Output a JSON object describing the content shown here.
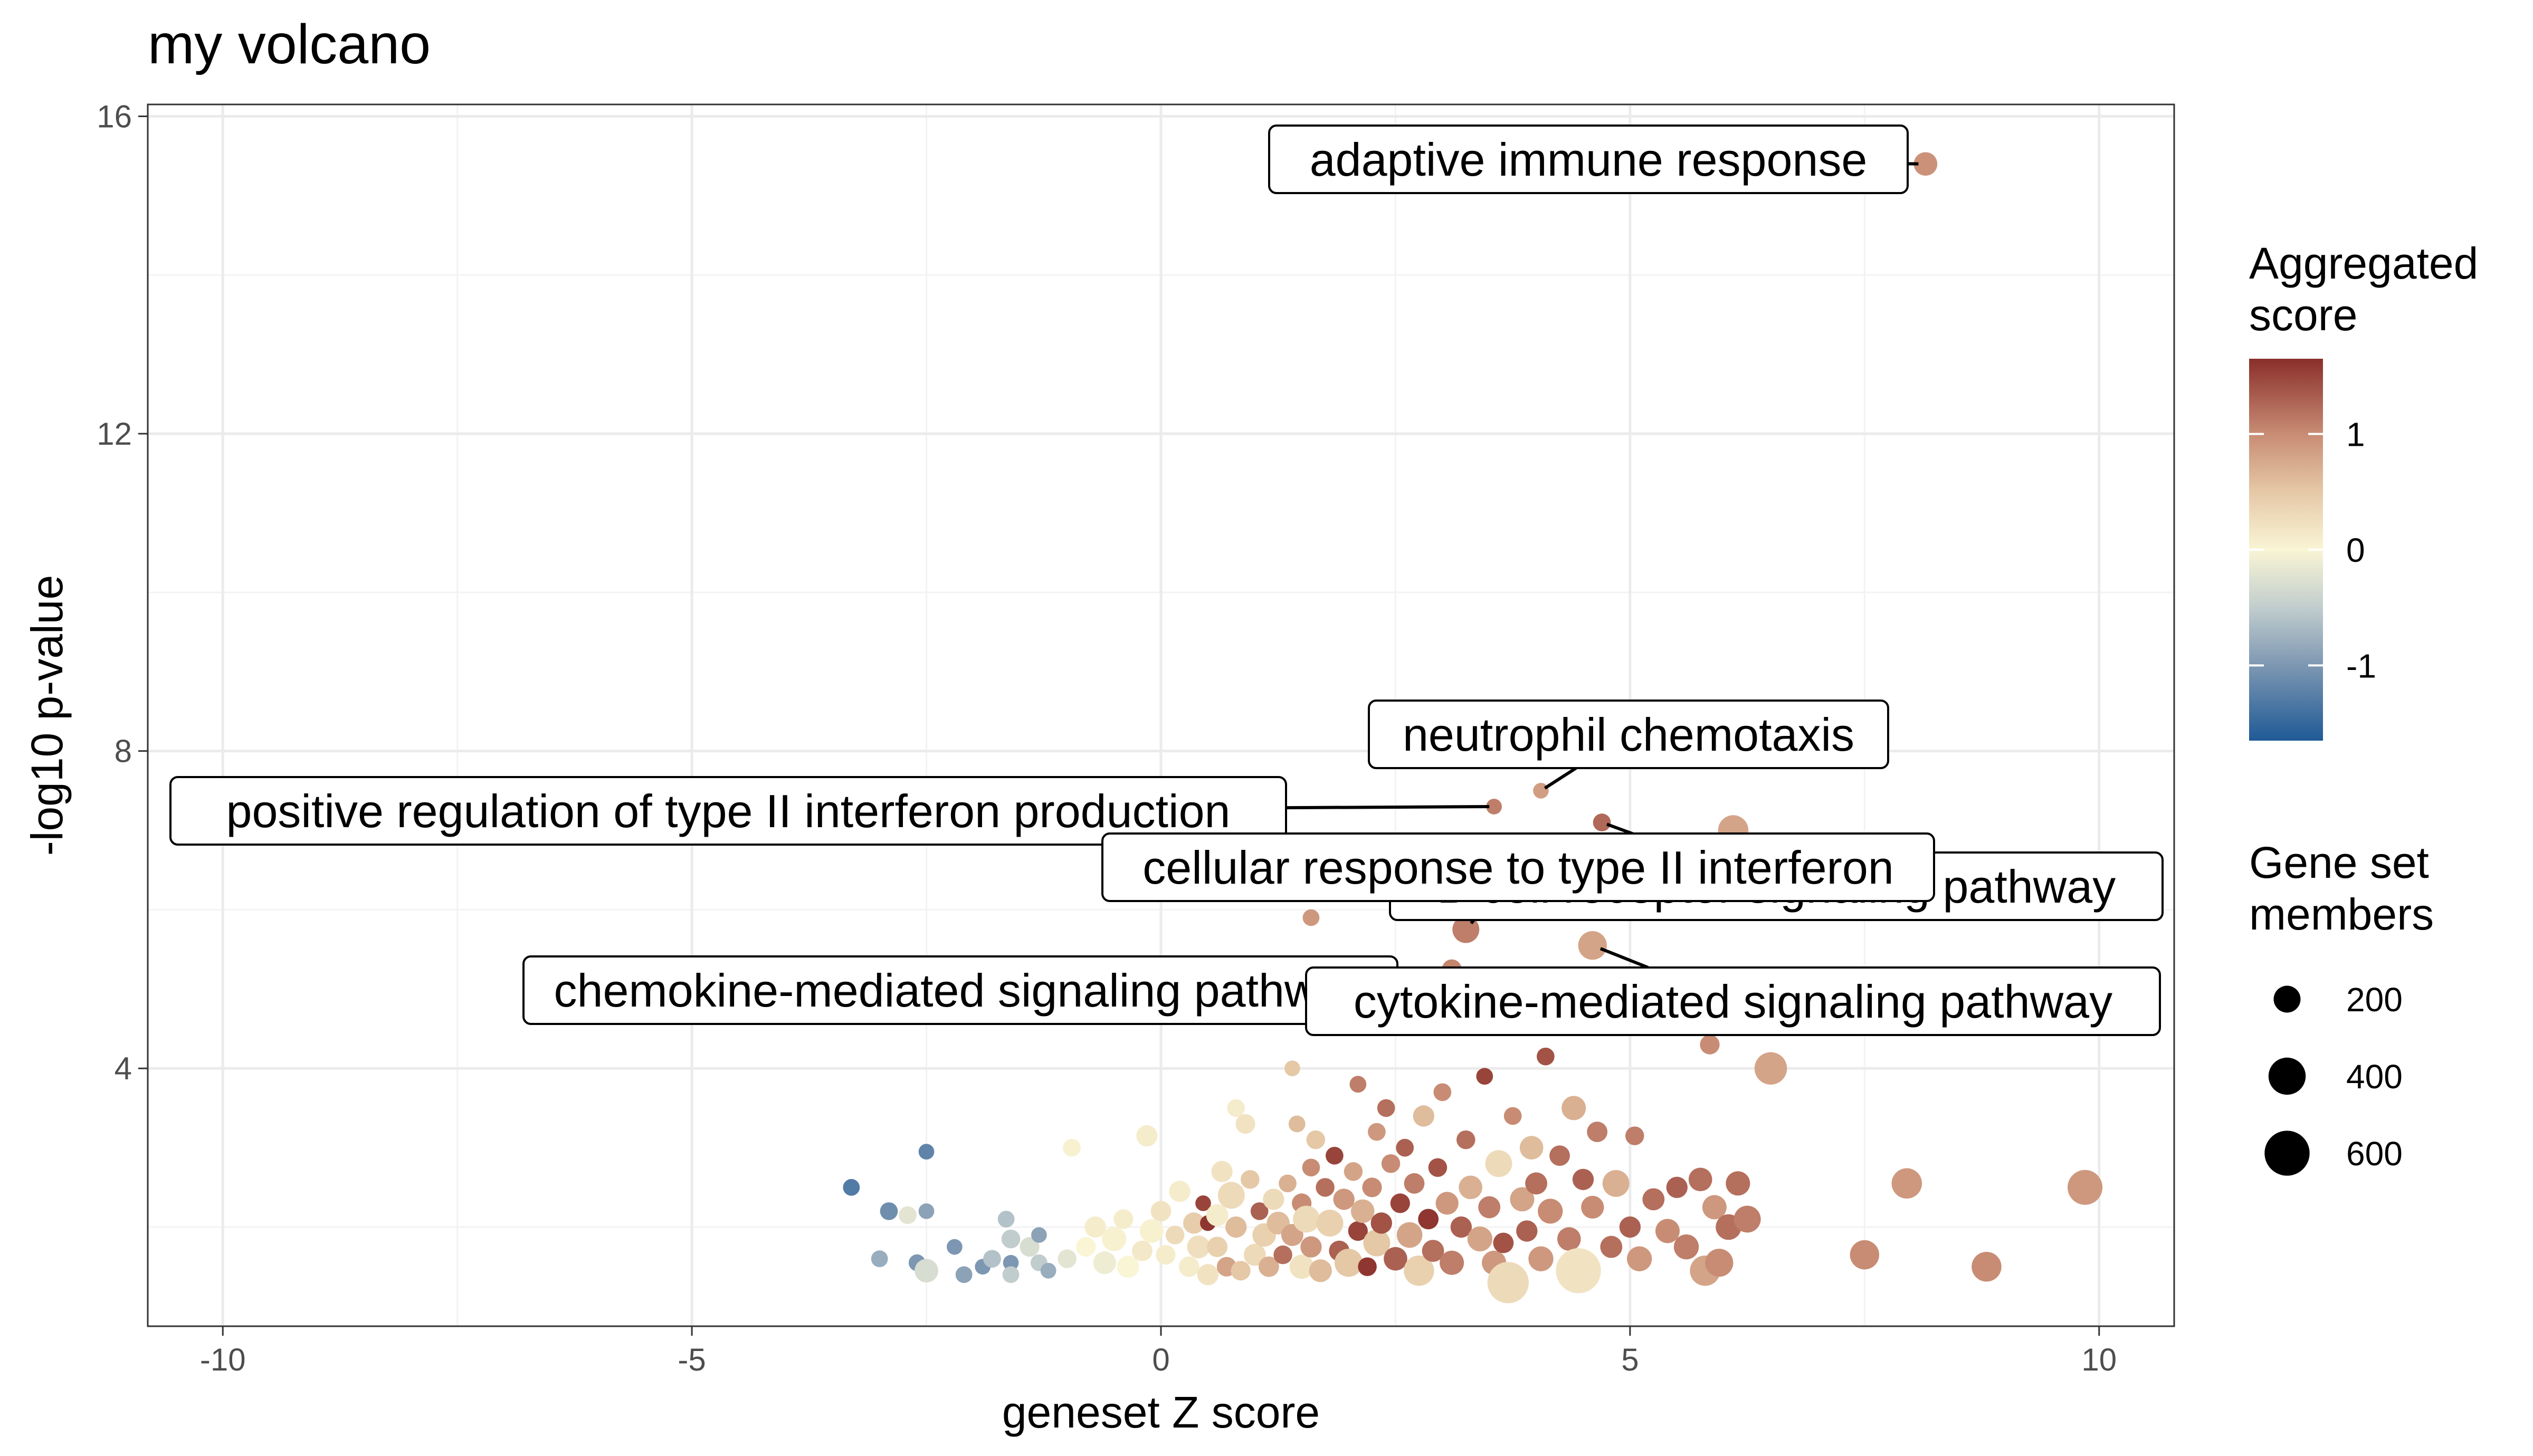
{
  "chart_data": {
    "type": "scatter",
    "title": "my volcano",
    "xlabel": "geneset Z score",
    "ylabel": "-log10 p-value",
    "xlim": [
      -10.8,
      10.8
    ],
    "ylim": [
      0.75,
      16.15
    ],
    "x_ticks": [
      -10,
      -5,
      0,
      5,
      10
    ],
    "y_ticks": [
      4,
      8,
      12,
      16
    ],
    "grid": true,
    "legend_position": "right",
    "color_scale": {
      "title_lines": [
        "Aggregated",
        "score"
      ],
      "domain": [
        -1.65,
        1.65
      ],
      "ticks": [
        1,
        0,
        -1
      ],
      "stops": [
        {
          "value": -1.65,
          "color": "#1f5a96"
        },
        {
          "value": -1.0,
          "color": "#7d97b2"
        },
        {
          "value": -0.5,
          "color": "#c1cdcd"
        },
        {
          "value": 0.0,
          "color": "#f9f5d5"
        },
        {
          "value": 0.5,
          "color": "#e5c8a6"
        },
        {
          "value": 1.0,
          "color": "#c88c74"
        },
        {
          "value": 1.65,
          "color": "#8a2f2a"
        }
      ]
    },
    "size_scale": {
      "title_lines": [
        "Gene set",
        "members"
      ],
      "ticks": [
        200,
        400,
        600
      ],
      "range": [
        50,
        700
      ]
    },
    "labeled_points": [
      {
        "label": "adaptive immune response",
        "x": 8.15,
        "y": 15.4,
        "color_value": 0.95,
        "size_value": 150
      },
      {
        "label": "neutrophil chemotaxis",
        "x": 4.05,
        "y": 7.5,
        "color_value": 0.85,
        "size_value": 60
      },
      {
        "label": "positive regulation of type II interferon production",
        "x": 3.55,
        "y": 7.3,
        "color_value": 1.1,
        "size_value": 60
      },
      {
        "label": "B cell receptor signaling pathway",
        "x": 4.7,
        "y": 7.1,
        "color_value": 1.25,
        "size_value": 80
      },
      {
        "label": "cellular response to type II interferon",
        "x": 3.25,
        "y": 5.75,
        "color_value": 1.1,
        "size_value": 200
      },
      {
        "label": "chemokine-mediated signaling pathway",
        "x": 3.1,
        "y": 5.25,
        "color_value": 1.05,
        "size_value": 100
      },
      {
        "label": "cytokine-mediated signaling pathway",
        "x": 4.6,
        "y": 5.55,
        "color_value": 0.8,
        "size_value": 230
      }
    ],
    "points": [
      {
        "x": -3.3,
        "y": 2.5,
        "color_value": -1.3,
        "size_value": 70
      },
      {
        "x": -2.9,
        "y": 2.2,
        "color_value": -1.1,
        "size_value": 80
      },
      {
        "x": -2.5,
        "y": 2.95,
        "color_value": -1.2,
        "size_value": 60
      },
      {
        "x": -2.5,
        "y": 2.2,
        "color_value": -0.9,
        "size_value": 60
      },
      {
        "x": -2.7,
        "y": 2.15,
        "color_value": -0.2,
        "size_value": 80
      },
      {
        "x": -3.0,
        "y": 1.6,
        "color_value": -0.8,
        "size_value": 70
      },
      {
        "x": -2.6,
        "y": 1.55,
        "color_value": -1.0,
        "size_value": 70
      },
      {
        "x": -2.5,
        "y": 1.45,
        "color_value": -0.3,
        "size_value": 150
      },
      {
        "x": -2.2,
        "y": 1.75,
        "color_value": -1.0,
        "size_value": 60
      },
      {
        "x": -2.1,
        "y": 1.4,
        "color_value": -0.9,
        "size_value": 70
      },
      {
        "x": -1.9,
        "y": 1.5,
        "color_value": -1.0,
        "size_value": 60
      },
      {
        "x": -1.8,
        "y": 1.6,
        "color_value": -0.6,
        "size_value": 80
      },
      {
        "x": -1.65,
        "y": 2.1,
        "color_value": -0.6,
        "size_value": 70
      },
      {
        "x": -1.6,
        "y": 1.85,
        "color_value": -0.5,
        "size_value": 90
      },
      {
        "x": -1.6,
        "y": 1.55,
        "color_value": -1.0,
        "size_value": 60
      },
      {
        "x": -1.6,
        "y": 1.4,
        "color_value": -0.5,
        "size_value": 70
      },
      {
        "x": -1.4,
        "y": 1.75,
        "color_value": -0.3,
        "size_value": 100
      },
      {
        "x": -1.3,
        "y": 1.9,
        "color_value": -0.9,
        "size_value": 60
      },
      {
        "x": -1.3,
        "y": 1.55,
        "color_value": -0.5,
        "size_value": 70
      },
      {
        "x": -1.2,
        "y": 1.45,
        "color_value": -0.8,
        "size_value": 60
      },
      {
        "x": -1.0,
        "y": 1.6,
        "color_value": -0.2,
        "size_value": 90
      },
      {
        "x": -0.95,
        "y": 3.0,
        "color_value": 0.05,
        "size_value": 80
      },
      {
        "x": -0.8,
        "y": 1.75,
        "color_value": 0.0,
        "size_value": 100
      },
      {
        "x": -0.7,
        "y": 2.0,
        "color_value": 0.1,
        "size_value": 120
      },
      {
        "x": -0.6,
        "y": 1.55,
        "color_value": -0.1,
        "size_value": 140
      },
      {
        "x": -0.5,
        "y": 1.85,
        "color_value": 0.05,
        "size_value": 160
      },
      {
        "x": -0.4,
        "y": 2.1,
        "color_value": 0.1,
        "size_value": 100
      },
      {
        "x": -0.35,
        "y": 1.5,
        "color_value": 0.0,
        "size_value": 130
      },
      {
        "x": -0.2,
        "y": 1.7,
        "color_value": 0.15,
        "size_value": 110
      },
      {
        "x": -0.15,
        "y": 3.15,
        "color_value": 0.1,
        "size_value": 120
      },
      {
        "x": -0.1,
        "y": 1.95,
        "color_value": 0.05,
        "size_value": 150
      },
      {
        "x": 0.0,
        "y": 2.2,
        "color_value": 0.2,
        "size_value": 110
      },
      {
        "x": 0.05,
        "y": 1.65,
        "color_value": 0.1,
        "size_value": 100
      },
      {
        "x": 0.15,
        "y": 1.9,
        "color_value": 0.3,
        "size_value": 90
      },
      {
        "x": 0.2,
        "y": 2.45,
        "color_value": 0.1,
        "size_value": 120
      },
      {
        "x": 0.3,
        "y": 1.5,
        "color_value": 0.1,
        "size_value": 110
      },
      {
        "x": 0.35,
        "y": 2.05,
        "color_value": 0.45,
        "size_value": 120
      },
      {
        "x": 0.4,
        "y": 1.75,
        "color_value": 0.25,
        "size_value": 140
      },
      {
        "x": 0.45,
        "y": 2.3,
        "color_value": 1.5,
        "size_value": 60
      },
      {
        "x": 0.5,
        "y": 2.05,
        "color_value": 1.6,
        "size_value": 60
      },
      {
        "x": 0.5,
        "y": 1.4,
        "color_value": 0.2,
        "size_value": 120
      },
      {
        "x": 0.6,
        "y": 2.15,
        "color_value": 0.1,
        "size_value": 130
      },
      {
        "x": 0.6,
        "y": 1.75,
        "color_value": 0.4,
        "size_value": 110
      },
      {
        "x": 0.65,
        "y": 2.7,
        "color_value": 0.2,
        "size_value": 120
      },
      {
        "x": 0.7,
        "y": 1.5,
        "color_value": 0.8,
        "size_value": 100
      },
      {
        "x": 0.75,
        "y": 2.4,
        "color_value": 0.3,
        "size_value": 200
      },
      {
        "x": 0.8,
        "y": 3.5,
        "color_value": 0.1,
        "size_value": 80
      },
      {
        "x": 0.8,
        "y": 2.0,
        "color_value": 0.6,
        "size_value": 120
      },
      {
        "x": 0.85,
        "y": 1.45,
        "color_value": 0.5,
        "size_value": 100
      },
      {
        "x": 0.9,
        "y": 3.3,
        "color_value": 0.2,
        "size_value": 100
      },
      {
        "x": 0.95,
        "y": 2.6,
        "color_value": 0.5,
        "size_value": 90
      },
      {
        "x": 1.0,
        "y": 1.65,
        "color_value": 0.3,
        "size_value": 130
      },
      {
        "x": 1.05,
        "y": 2.2,
        "color_value": 1.3,
        "size_value": 80
      },
      {
        "x": 1.1,
        "y": 1.9,
        "color_value": 0.4,
        "size_value": 150
      },
      {
        "x": 1.15,
        "y": 1.5,
        "color_value": 0.7,
        "size_value": 110
      },
      {
        "x": 1.2,
        "y": 2.35,
        "color_value": 0.3,
        "size_value": 120
      },
      {
        "x": 1.25,
        "y": 2.05,
        "color_value": 0.6,
        "size_value": 140
      },
      {
        "x": 1.3,
        "y": 1.65,
        "color_value": 1.2,
        "size_value": 90
      },
      {
        "x": 1.35,
        "y": 2.55,
        "color_value": 0.7,
        "size_value": 80
      },
      {
        "x": 1.4,
        "y": 4.0,
        "color_value": 0.5,
        "size_value": 60
      },
      {
        "x": 1.4,
        "y": 1.9,
        "color_value": 0.8,
        "size_value": 130
      },
      {
        "x": 1.45,
        "y": 3.3,
        "color_value": 0.6,
        "size_value": 70
      },
      {
        "x": 1.5,
        "y": 2.3,
        "color_value": 1.0,
        "size_value": 100
      },
      {
        "x": 1.5,
        "y": 1.5,
        "color_value": 0.2,
        "size_value": 160
      },
      {
        "x": 1.55,
        "y": 2.1,
        "color_value": 0.3,
        "size_value": 200
      },
      {
        "x": 1.6,
        "y": 2.75,
        "color_value": 1.0,
        "size_value": 80
      },
      {
        "x": 1.6,
        "y": 1.75,
        "color_value": 0.9,
        "size_value": 120
      },
      {
        "x": 1.6,
        "y": 5.9,
        "color_value": 0.9,
        "size_value": 70
      },
      {
        "x": 1.65,
        "y": 3.1,
        "color_value": 0.5,
        "size_value": 90
      },
      {
        "x": 1.7,
        "y": 1.45,
        "color_value": 0.6,
        "size_value": 140
      },
      {
        "x": 1.75,
        "y": 2.5,
        "color_value": 1.2,
        "size_value": 90
      },
      {
        "x": 1.8,
        "y": 2.05,
        "color_value": 0.4,
        "size_value": 200
      },
      {
        "x": 1.85,
        "y": 2.9,
        "color_value": 1.5,
        "size_value": 80
      },
      {
        "x": 1.9,
        "y": 1.7,
        "color_value": 1.3,
        "size_value": 110
      },
      {
        "x": 1.95,
        "y": 2.35,
        "color_value": 0.9,
        "size_value": 120
      },
      {
        "x": 2.0,
        "y": 1.55,
        "color_value": 0.5,
        "size_value": 220
      },
      {
        "x": 2.05,
        "y": 2.7,
        "color_value": 0.8,
        "size_value": 90
      },
      {
        "x": 2.1,
        "y": 3.8,
        "color_value": 1.1,
        "size_value": 70
      },
      {
        "x": 2.1,
        "y": 1.95,
        "color_value": 1.5,
        "size_value": 100
      },
      {
        "x": 2.15,
        "y": 2.2,
        "color_value": 0.7,
        "size_value": 150
      },
      {
        "x": 2.2,
        "y": 1.5,
        "color_value": 1.6,
        "size_value": 90
      },
      {
        "x": 2.25,
        "y": 2.5,
        "color_value": 1.0,
        "size_value": 100
      },
      {
        "x": 2.3,
        "y": 3.2,
        "color_value": 0.9,
        "size_value": 80
      },
      {
        "x": 2.3,
        "y": 1.8,
        "color_value": 0.5,
        "size_value": 200
      },
      {
        "x": 2.35,
        "y": 2.05,
        "color_value": 1.4,
        "size_value": 120
      },
      {
        "x": 2.4,
        "y": 3.5,
        "color_value": 1.2,
        "size_value": 80
      },
      {
        "x": 2.45,
        "y": 2.8,
        "color_value": 1.0,
        "size_value": 90
      },
      {
        "x": 2.5,
        "y": 1.6,
        "color_value": 1.3,
        "size_value": 150
      },
      {
        "x": 2.55,
        "y": 2.3,
        "color_value": 1.5,
        "size_value": 100
      },
      {
        "x": 2.6,
        "y": 3.0,
        "color_value": 1.3,
        "size_value": 80
      },
      {
        "x": 2.65,
        "y": 1.9,
        "color_value": 0.8,
        "size_value": 180
      },
      {
        "x": 2.7,
        "y": 2.55,
        "color_value": 1.1,
        "size_value": 110
      },
      {
        "x": 2.75,
        "y": 1.45,
        "color_value": 0.4,
        "size_value": 260
      },
      {
        "x": 2.8,
        "y": 3.4,
        "color_value": 0.6,
        "size_value": 120
      },
      {
        "x": 2.85,
        "y": 2.1,
        "color_value": 1.6,
        "size_value": 110
      },
      {
        "x": 2.9,
        "y": 1.7,
        "color_value": 1.2,
        "size_value": 130
      },
      {
        "x": 2.95,
        "y": 2.75,
        "color_value": 1.4,
        "size_value": 90
      },
      {
        "x": 3.0,
        "y": 3.7,
        "color_value": 1.0,
        "size_value": 80
      },
      {
        "x": 3.05,
        "y": 2.3,
        "color_value": 0.9,
        "size_value": 140
      },
      {
        "x": 3.1,
        "y": 1.55,
        "color_value": 1.1,
        "size_value": 160
      },
      {
        "x": 3.2,
        "y": 2.0,
        "color_value": 1.3,
        "size_value": 120
      },
      {
        "x": 3.25,
        "y": 3.1,
        "color_value": 1.2,
        "size_value": 90
      },
      {
        "x": 3.3,
        "y": 2.5,
        "color_value": 0.7,
        "size_value": 150
      },
      {
        "x": 3.4,
        "y": 1.85,
        "color_value": 0.8,
        "size_value": 170
      },
      {
        "x": 3.45,
        "y": 3.9,
        "color_value": 1.5,
        "size_value": 70
      },
      {
        "x": 3.5,
        "y": 2.25,
        "color_value": 1.1,
        "size_value": 130
      },
      {
        "x": 3.55,
        "y": 1.55,
        "color_value": 0.9,
        "size_value": 160
      },
      {
        "x": 3.6,
        "y": 2.8,
        "color_value": 0.3,
        "size_value": 200
      },
      {
        "x": 3.65,
        "y": 1.8,
        "color_value": 1.4,
        "size_value": 110
      },
      {
        "x": 3.7,
        "y": 1.3,
        "color_value": 0.3,
        "size_value": 500
      },
      {
        "x": 3.75,
        "y": 3.4,
        "color_value": 1.0,
        "size_value": 80
      },
      {
        "x": 3.85,
        "y": 2.35,
        "color_value": 0.8,
        "size_value": 160
      },
      {
        "x": 3.9,
        "y": 1.95,
        "color_value": 1.3,
        "size_value": 120
      },
      {
        "x": 3.95,
        "y": 3.0,
        "color_value": 0.6,
        "size_value": 150
      },
      {
        "x": 4.0,
        "y": 2.55,
        "color_value": 1.2,
        "size_value": 130
      },
      {
        "x": 4.05,
        "y": 1.6,
        "color_value": 0.9,
        "size_value": 170
      },
      {
        "x": 4.1,
        "y": 4.15,
        "color_value": 1.4,
        "size_value": 80
      },
      {
        "x": 4.15,
        "y": 2.2,
        "color_value": 1.0,
        "size_value": 170
      },
      {
        "x": 4.25,
        "y": 2.9,
        "color_value": 1.2,
        "size_value": 110
      },
      {
        "x": 4.35,
        "y": 1.85,
        "color_value": 1.1,
        "size_value": 150
      },
      {
        "x": 4.4,
        "y": 3.5,
        "color_value": 0.7,
        "size_value": 160
      },
      {
        "x": 4.45,
        "y": 1.45,
        "color_value": 0.2,
        "size_value": 600
      },
      {
        "x": 4.5,
        "y": 2.6,
        "color_value": 1.3,
        "size_value": 120
      },
      {
        "x": 4.6,
        "y": 2.25,
        "color_value": 1.0,
        "size_value": 140
      },
      {
        "x": 4.65,
        "y": 3.2,
        "color_value": 1.1,
        "size_value": 110
      },
      {
        "x": 4.8,
        "y": 1.75,
        "color_value": 1.2,
        "size_value": 130
      },
      {
        "x": 4.85,
        "y": 2.55,
        "color_value": 0.7,
        "size_value": 200
      },
      {
        "x": 5.0,
        "y": 2.0,
        "color_value": 1.3,
        "size_value": 120
      },
      {
        "x": 5.05,
        "y": 3.15,
        "color_value": 1.1,
        "size_value": 90
      },
      {
        "x": 5.1,
        "y": 1.6,
        "color_value": 0.9,
        "size_value": 170
      },
      {
        "x": 5.25,
        "y": 2.35,
        "color_value": 1.2,
        "size_value": 130
      },
      {
        "x": 5.4,
        "y": 1.95,
        "color_value": 1.0,
        "size_value": 160
      },
      {
        "x": 5.5,
        "y": 2.5,
        "color_value": 1.3,
        "size_value": 120
      },
      {
        "x": 5.6,
        "y": 1.75,
        "color_value": 1.1,
        "size_value": 170
      },
      {
        "x": 5.75,
        "y": 2.6,
        "color_value": 1.2,
        "size_value": 150
      },
      {
        "x": 5.8,
        "y": 1.45,
        "color_value": 0.8,
        "size_value": 260
      },
      {
        "x": 5.85,
        "y": 4.3,
        "color_value": 1.0,
        "size_value": 100
      },
      {
        "x": 5.9,
        "y": 2.25,
        "color_value": 0.9,
        "size_value": 160
      },
      {
        "x": 5.95,
        "y": 1.55,
        "color_value": 1.0,
        "size_value": 220
      },
      {
        "x": 6.05,
        "y": 2.0,
        "color_value": 1.2,
        "size_value": 180
      },
      {
        "x": 6.1,
        "y": 7.0,
        "color_value": 0.8,
        "size_value": 260
      },
      {
        "x": 6.15,
        "y": 2.55,
        "color_value": 1.2,
        "size_value": 160
      },
      {
        "x": 6.25,
        "y": 2.1,
        "color_value": 1.1,
        "size_value": 200
      },
      {
        "x": 6.5,
        "y": 4.0,
        "color_value": 0.8,
        "size_value": 300
      },
      {
        "x": 7.5,
        "y": 1.65,
        "color_value": 1.0,
        "size_value": 240
      },
      {
        "x": 7.95,
        "y": 2.55,
        "color_value": 0.9,
        "size_value": 260
      },
      {
        "x": 8.8,
        "y": 1.5,
        "color_value": 1.0,
        "size_value": 250
      },
      {
        "x": 9.85,
        "y": 2.5,
        "color_value": 0.9,
        "size_value": 350
      }
    ]
  }
}
